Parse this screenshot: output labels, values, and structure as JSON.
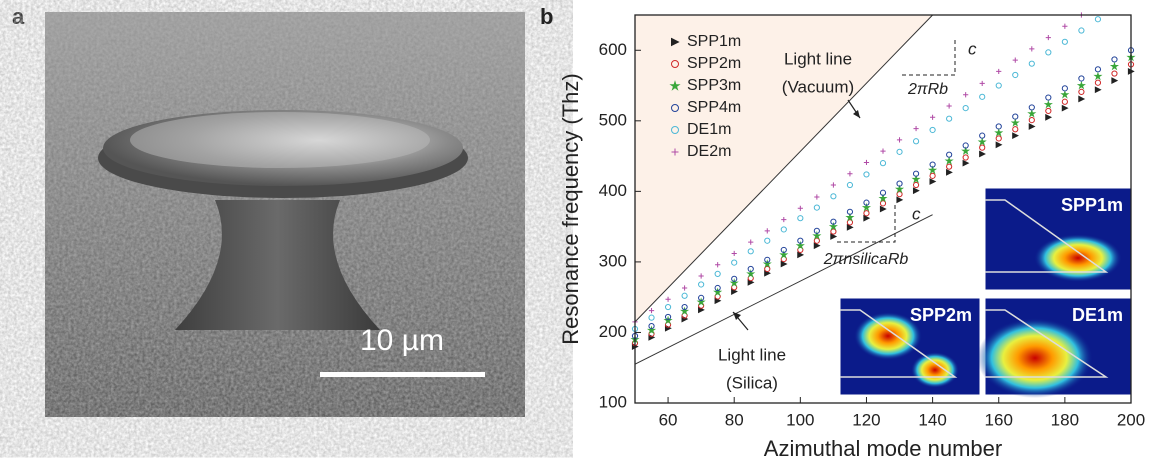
{
  "figure_labels": [
    "a",
    "b"
  ],
  "scale_bar_label": "10 µm",
  "chart_data": {
    "type": "scatter",
    "xlabel": "Azimuthal mode number",
    "ylabel": "Resonance frequency (Thz)",
    "xlim": [
      50,
      200
    ],
    "ylim": [
      100,
      650
    ],
    "xticks": [
      60,
      80,
      100,
      120,
      140,
      160,
      180,
      200
    ],
    "yticks": [
      100,
      200,
      300,
      400,
      500,
      600
    ],
    "x": [
      50,
      55,
      60,
      65,
      70,
      75,
      80,
      85,
      90,
      95,
      100,
      105,
      110,
      115,
      120,
      125,
      130,
      135,
      140,
      145,
      150,
      155,
      160,
      165,
      170,
      175,
      180,
      185,
      190,
      195,
      200
    ],
    "series": [
      {
        "name": "SPP1m",
        "color": "#222222",
        "marker": "triangle",
        "values": [
          180,
          193,
          206,
          219,
          232,
          245,
          258,
          271,
          284,
          297,
          310,
          323,
          336,
          349,
          362,
          375,
          388,
          401,
          414,
          427,
          440,
          453,
          466,
          479,
          492,
          505,
          518,
          531,
          544,
          557,
          570
        ]
      },
      {
        "name": "SPP2m",
        "color": "#d02828",
        "marker": "circle",
        "values": [
          185,
          198,
          211,
          224,
          238,
          251,
          264,
          277,
          290,
          304,
          317,
          330,
          343,
          356,
          369,
          383,
          396,
          409,
          422,
          435,
          448,
          462,
          475,
          488,
          501,
          514,
          527,
          541,
          554,
          567,
          580
        ]
      },
      {
        "name": "SPP3m",
        "color": "#3aa63a",
        "marker": "star",
        "values": [
          190,
          203,
          217,
          230,
          243,
          257,
          270,
          283,
          297,
          310,
          323,
          337,
          350,
          363,
          377,
          390,
          403,
          417,
          430,
          443,
          457,
          470,
          483,
          497,
          510,
          523,
          537,
          550,
          563,
          577,
          590
        ]
      },
      {
        "name": "SPP4m",
        "color": "#23449a",
        "marker": "circle",
        "values": [
          195,
          209,
          222,
          236,
          249,
          263,
          276,
          290,
          303,
          317,
          330,
          344,
          357,
          371,
          384,
          398,
          411,
          425,
          438,
          452,
          465,
          479,
          492,
          506,
          519,
          533,
          546,
          560,
          573,
          587,
          600
        ]
      },
      {
        "name": "DE1m",
        "color": "#4cb8d6",
        "marker": "circle",
        "values": [
          205,
          221,
          236,
          252,
          268,
          283,
          299,
          315,
          330,
          346,
          362,
          377,
          393,
          409,
          424,
          440,
          456,
          471,
          487,
          503,
          518,
          534,
          550,
          565,
          581,
          597,
          612,
          628,
          644,
          null,
          null
        ]
      },
      {
        "name": "DE2m",
        "color": "#b04aa6",
        "marker": "plus",
        "values": [
          215,
          231,
          247,
          263,
          280,
          296,
          312,
          328,
          344,
          360,
          376,
          392,
          409,
          425,
          441,
          457,
          473,
          489,
          505,
          521,
          537,
          553,
          570,
          586,
          602,
          618,
          634,
          650,
          null,
          null,
          null
        ]
      }
    ],
    "light_lines": [
      {
        "lines": [
          "Light line",
          "(Vacuum)"
        ],
        "x": [
          50,
          140
        ],
        "y": [
          215,
          650
        ]
      },
      {
        "lines": [
          "Light line",
          "(Silica)"
        ],
        "x": [
          50,
          140
        ],
        "y": [
          155,
          367
        ]
      }
    ],
    "slope_labels": [
      {
        "rise": "c",
        "run": "2πRb"
      },
      {
        "rise": "c",
        "run": "2πnsilicaRb"
      }
    ],
    "insets": [
      "SPP1m",
      "SPP2m",
      "DE1m"
    ]
  }
}
